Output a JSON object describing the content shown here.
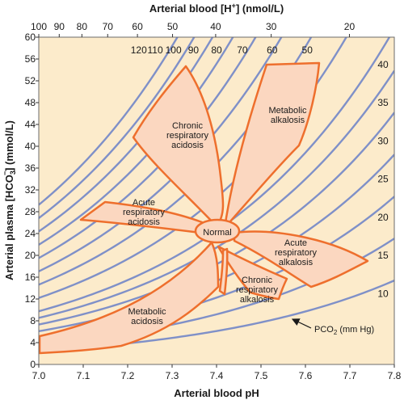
{
  "chart_data": {
    "type": "line",
    "xlabel": "Arterial blood pH",
    "ylabel": "Arterial plasma [HCO",
    "ylabel_sub": "3",
    "ylabel_sup": "−",
    "ylabel_end": "] (mmol/L)",
    "top_label": "Arterial blood [H",
    "top_label_sup": "+",
    "top_label_end": "] (nmol/L)",
    "xlim": [
      7.0,
      7.8
    ],
    "ylim": [
      0,
      60
    ],
    "x_ticks": [
      "7.0",
      "7.1",
      "7.2",
      "7.3",
      "7.4",
      "7.5",
      "7.6",
      "7.7",
      "7.8"
    ],
    "y_ticks": [
      "0",
      "4",
      "8",
      "12",
      "16",
      "20",
      "24",
      "28",
      "32",
      "36",
      "40",
      "44",
      "48",
      "52",
      "56",
      "60"
    ],
    "top_ticks": [
      {
        "label": "100",
        "ph": 7.0
      },
      {
        "label": "90",
        "ph": 7.046
      },
      {
        "label": "80",
        "ph": 7.097
      },
      {
        "label": "70",
        "ph": 7.155
      },
      {
        "label": "60",
        "ph": 7.222
      },
      {
        "label": "50",
        "ph": 7.301
      },
      {
        "label": "40",
        "ph": 7.398
      },
      {
        "label": "30",
        "ph": 7.523
      },
      {
        "label": "20",
        "ph": 7.699
      }
    ],
    "isopleths": [
      10,
      15,
      20,
      25,
      30,
      35,
      40,
      50,
      60,
      70,
      80,
      90,
      100,
      110,
      120
    ],
    "isopleth_labels_top": [
      {
        "label": "120",
        "ph": 7.225
      },
      {
        "label": "110",
        "ph": 7.262
      },
      {
        "label": "100",
        "ph": 7.303
      },
      {
        "label": "90",
        "ph": 7.348
      },
      {
        "label": "80",
        "ph": 7.4
      },
      {
        "label": "70",
        "ph": 7.458
      },
      {
        "label": "60",
        "ph": 7.525
      },
      {
        "label": "50",
        "ph": 7.604
      }
    ],
    "isopleth_labels_right": [
      {
        "label": "40",
        "hco3": 55
      },
      {
        "label": "35",
        "hco3": 48
      },
      {
        "label": "30",
        "hco3": 41
      },
      {
        "label": "25",
        "hco3": 34
      },
      {
        "label": "20",
        "hco3": 27
      },
      {
        "label": "15",
        "hco3": 20
      },
      {
        "label": "10",
        "hco3": 13
      }
    ],
    "pco2_label": "PCO",
    "pco2_sub": "2",
    "pco2_unit": " (mm Hg)",
    "regions": [
      {
        "name": "Chronic respiratory acidosis",
        "lines": [
          "Chronic",
          "respiratory",
          "acidosis"
        ]
      },
      {
        "name": "Metabolic alkalosis",
        "lines": [
          "Metabolic",
          "alkalosis"
        ]
      },
      {
        "name": "Acute respiratory acidosis",
        "lines": [
          "Acute",
          "respiratory",
          "acidosis"
        ]
      },
      {
        "name": "Normal",
        "lines": [
          "Normal"
        ]
      },
      {
        "name": "Acute respiratory alkalosis",
        "lines": [
          "Acute",
          "respiratory",
          "alkalosis"
        ]
      },
      {
        "name": "Chronic respiratory alkalosis",
        "lines": [
          "Chronic",
          "respiratory",
          "alkalosis"
        ]
      },
      {
        "name": "Metabolic acidosis",
        "lines": [
          "Metabolic",
          "acidosis"
        ]
      }
    ],
    "colors": {
      "background": "#fcebcb",
      "isopleth": "#7f90c8",
      "region_fill": "#fbd7c0",
      "region_stroke": "#ee6f2d"
    }
  }
}
